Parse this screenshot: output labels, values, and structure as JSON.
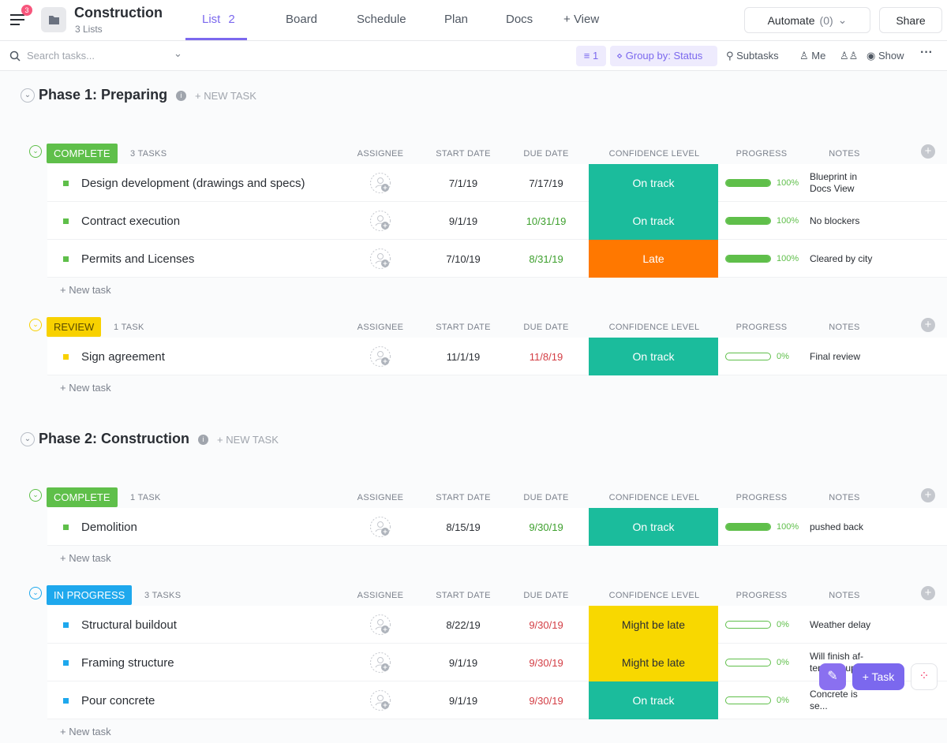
{
  "header": {
    "notification_count": "3",
    "title": "Construction",
    "subtitle": "3 Lists",
    "tabs": [
      "List",
      "Board",
      "Schedule",
      "Plan",
      "Docs"
    ],
    "list_count": "2",
    "add_view": "View",
    "automate": "Automate",
    "automate_count": "(0)",
    "share": "Share"
  },
  "toolbar": {
    "search_placeholder": "Search tasks...",
    "filter_count": "1",
    "group_by": "Group by: Status",
    "subtasks": "Subtasks",
    "me": "Me",
    "show": "Show"
  },
  "columns": [
    "ASSIGNEE",
    "START DATE",
    "DUE DATE",
    "CONFIDENCE LEVEL",
    "PROGRESS",
    "NOTES"
  ],
  "phases": [
    {
      "title": "Phase 1: Preparing",
      "new_task": "+ NEW TASK",
      "groups": [
        {
          "status": "COMPLETE",
          "color": "#5fbf4a",
          "count": "3 TASKS",
          "new_task": "+ New task",
          "tasks": [
            {
              "name": "Design development (drawings and specs)",
              "start": "7/1/19",
              "due": "7/17/19",
              "due_color": "#2a2e34",
              "confidence": "On track",
              "confidence_color": "#1bbc9c",
              "progress": {
                "value": 100,
                "label": "100%"
              },
              "notes": "Blueprint in Docs View"
            },
            {
              "name": "Contract execution",
              "start": "9/1/19",
              "due": "10/31/19",
              "due_color": "#3ea02e",
              "confidence": "On track",
              "confidence_color": "#1bbc9c",
              "progress": {
                "value": 100,
                "label": "100%"
              },
              "notes": "No blockers"
            },
            {
              "name": "Permits and Licenses",
              "start": "7/10/19",
              "due": "8/31/19",
              "due_color": "#3ea02e",
              "confidence": "Late",
              "confidence_color": "#ff7800",
              "progress": {
                "value": 100,
                "label": "100%"
              },
              "notes": "Cleared by city"
            }
          ]
        },
        {
          "status": "REVIEW",
          "color": "#f8d100",
          "count": "1 TASK",
          "new_task": "+ New task",
          "tasks": [
            {
              "name": "Sign agreement",
              "start": "11/1/19",
              "due": "11/8/19",
              "due_color": "#d33d44",
              "confidence": "On track",
              "confidence_color": "#1bbc9c",
              "progress": {
                "value": 0,
                "label": "0%"
              },
              "notes": "Final review"
            }
          ]
        }
      ]
    },
    {
      "title": "Phase 2: Construction",
      "new_task": "+ NEW TASK",
      "groups": [
        {
          "status": "COMPLETE",
          "color": "#5fbf4a",
          "count": "1 TASK",
          "new_task": "+ New task",
          "tasks": [
            {
              "name": "Demolition",
              "start": "8/15/19",
              "due": "9/30/19",
              "due_color": "#3ea02e",
              "confidence": "On track",
              "confidence_color": "#1bbc9c",
              "progress": {
                "value": 100,
                "label": "100%"
              },
              "notes": "pushed back"
            }
          ]
        },
        {
          "status": "IN PROGRESS",
          "color": "#1ea8ed",
          "count": "3 TASKS",
          "new_task": "+ New task",
          "tasks": [
            {
              "name": "Structural buildout",
              "start": "8/22/19",
              "due": "9/30/19",
              "due_color": "#d33d44",
              "confidence": "Might be late",
              "confidence_color": "#f8d800",
              "progress": {
                "value": 0,
                "label": "0%"
              },
              "notes": "Weather delay"
            },
            {
              "name": "Framing structure",
              "start": "9/1/19",
              "due": "9/30/19",
              "due_color": "#d33d44",
              "confidence": "Might be late",
              "confidence_color": "#f8d800",
              "progress": {
                "value": 0,
                "label": "0%"
              },
              "notes": "Will finish af-ter last suppl..."
            },
            {
              "name": "Pour concrete",
              "start": "9/1/19",
              "due": "9/30/19",
              "due_color": "#d33d44",
              "confidence": "On track",
              "confidence_color": "#1bbc9c",
              "progress": {
                "value": 0,
                "label": "0%"
              },
              "notes": "Concrete is se..."
            }
          ]
        }
      ]
    }
  ],
  "floating": {
    "task_button": "Task"
  }
}
